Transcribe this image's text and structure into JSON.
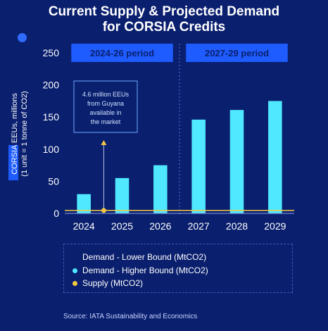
{
  "title_lines": [
    "Current Supply & Projected Demand",
    "for CORSIA Credits"
  ],
  "source": "Source: IATA Sustainability and Economics",
  "colors": {
    "background": "#0a1f6e",
    "bar": "#4fe8ff",
    "supply": "#f5c842",
    "period_box": "#1e5cff",
    "dot": "#2f6bff"
  },
  "periods": [
    {
      "label": "2024-26 period",
      "start": "2024",
      "end": "2026"
    },
    {
      "label": "2027-29 period",
      "start": "2027",
      "end": "2029"
    }
  ],
  "annotation": {
    "text_lines": [
      "4.6 million EEUs",
      "from Guyana",
      "available in",
      "the market"
    ],
    "category": "2024"
  },
  "legend": [
    {
      "label": "Demand - Lower Bound (MtCO2)",
      "marker": "none"
    },
    {
      "label": "Demand - Higher Bound (MtCO2)",
      "marker": "#4fe8ff"
    },
    {
      "label": "Supply (MtCO2)",
      "marker": "#f5c842"
    }
  ],
  "chart_data": {
    "type": "bar",
    "categories": [
      "2024",
      "2025",
      "2026",
      "2027",
      "2028",
      "2029"
    ],
    "series": [
      {
        "name": "Demand - Lower Bound (MtCO2)",
        "values": [
          null,
          null,
          null,
          null,
          null,
          null
        ]
      },
      {
        "name": "Demand - Higher Bound (MtCO2)",
        "values": [
          30,
          55,
          75,
          146,
          161,
          175
        ]
      },
      {
        "name": "Supply (MtCO2)",
        "values": [
          4.6,
          null,
          null,
          null,
          null,
          null
        ]
      }
    ],
    "ylabel_lines": [
      "CORSIA EEUs, millions",
      "(1 unit = 1 tonne of CO2)"
    ],
    "ylim": [
      0,
      250
    ],
    "yticks": [
      0,
      50,
      100,
      150,
      200,
      250
    ],
    "grid": false,
    "legend_position": "bottom"
  }
}
